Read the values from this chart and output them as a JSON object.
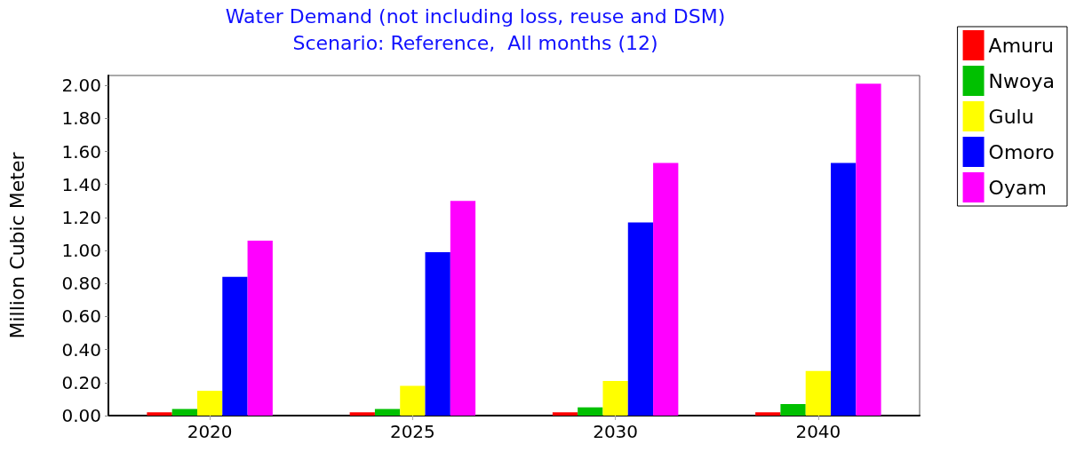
{
  "chart_data": {
    "type": "bar",
    "title": "Water Demand (not including loss, reuse and DSM)",
    "subtitle": "Scenario: Reference,  All months (12)",
    "ylabel": "Million Cubic Meter",
    "categories": [
      "2020",
      "2025",
      "2030",
      "2040"
    ],
    "series": [
      {
        "name": "Amuru",
        "color": "#ff0000",
        "values": [
          0.02,
          0.02,
          0.02,
          0.02
        ]
      },
      {
        "name": "Nwoya",
        "color": "#00c000",
        "values": [
          0.04,
          0.04,
          0.05,
          0.07
        ]
      },
      {
        "name": "Gulu",
        "color": "#ffff00",
        "values": [
          0.15,
          0.18,
          0.21,
          0.27
        ]
      },
      {
        "name": "Omoro",
        "color": "#0000ff",
        "values": [
          0.84,
          0.99,
          1.17,
          1.53
        ]
      },
      {
        "name": "Oyam",
        "color": "#ff00ff",
        "values": [
          1.06,
          1.3,
          1.53,
          2.01
        ]
      }
    ],
    "ylim": [
      0,
      2.06
    ],
    "yticks": [
      {
        "value": 0,
        "label": "0.00"
      },
      {
        "value": 0.2,
        "label": "0.20"
      },
      {
        "value": 0.4,
        "label": "0.40"
      },
      {
        "value": 0.6,
        "label": "0.60"
      },
      {
        "value": 0.8,
        "label": "0.80"
      },
      {
        "value": 1,
        "label": "1.00"
      },
      {
        "value": 1.2,
        "label": "1.20"
      },
      {
        "value": 1.4,
        "label": "1.40"
      },
      {
        "value": 1.6,
        "label": "1.60"
      },
      {
        "value": 1.8,
        "label": "1.80"
      },
      {
        "value": 2,
        "label": "2.00"
      }
    ],
    "grid": false,
    "legend": "right"
  }
}
